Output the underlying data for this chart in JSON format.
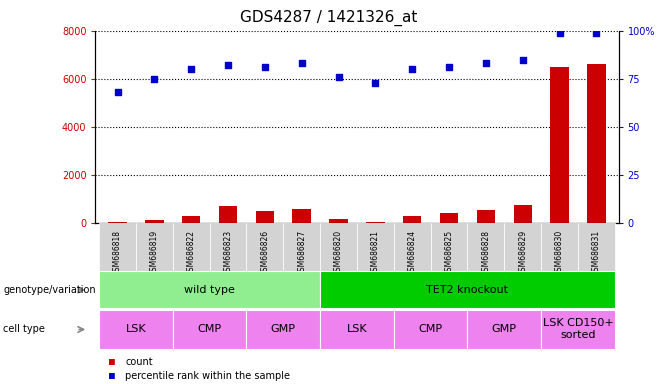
{
  "title": "GDS4287 / 1421326_at",
  "samples": [
    "GSM686818",
    "GSM686819",
    "GSM686822",
    "GSM686823",
    "GSM686826",
    "GSM686827",
    "GSM686820",
    "GSM686821",
    "GSM686824",
    "GSM686825",
    "GSM686828",
    "GSM686829",
    "GSM686830",
    "GSM686831"
  ],
  "counts": [
    50,
    130,
    280,
    700,
    480,
    560,
    150,
    30,
    300,
    420,
    550,
    750,
    6500,
    6600
  ],
  "percentile": [
    68,
    75,
    80,
    82,
    81,
    83,
    76,
    73,
    80,
    81,
    83,
    85,
    99,
    99
  ],
  "bar_color": "#cc0000",
  "dot_color": "#0000cc",
  "ylim_left": [
    0,
    8000
  ],
  "ylim_right": [
    0,
    100
  ],
  "yticks_left": [
    0,
    2000,
    4000,
    6000,
    8000
  ],
  "yticks_right": [
    0,
    25,
    50,
    75,
    100
  ],
  "yticklabels_right": [
    "0",
    "25",
    "50",
    "75",
    "100%"
  ],
  "genotype_groups": [
    {
      "label": "wild type",
      "start": 0,
      "end": 6,
      "color": "#90ee90"
    },
    {
      "label": "TET2 knockout",
      "start": 6,
      "end": 14,
      "color": "#00cc00"
    }
  ],
  "cell_type_groups": [
    {
      "label": "LSK",
      "start": 0,
      "end": 2,
      "color": "#ee82ee"
    },
    {
      "label": "CMP",
      "start": 2,
      "end": 4,
      "color": "#ee82ee"
    },
    {
      "label": "GMP",
      "start": 4,
      "end": 6,
      "color": "#ee82ee"
    },
    {
      "label": "LSK",
      "start": 6,
      "end": 8,
      "color": "#ee82ee"
    },
    {
      "label": "CMP",
      "start": 8,
      "end": 10,
      "color": "#ee82ee"
    },
    {
      "label": "GMP",
      "start": 10,
      "end": 12,
      "color": "#ee82ee"
    },
    {
      "label": "LSK CD150+\nsorted",
      "start": 12,
      "end": 14,
      "color": "#ee82ee"
    }
  ],
  "background_color": "#ffffff",
  "dotted_grid_color": "#000000",
  "tick_label_color_left": "#cc0000",
  "tick_label_color_right": "#0000cc",
  "title_fontsize": 11,
  "axis_fontsize": 7,
  "bar_width": 0.5,
  "left_label_color": "#888888",
  "genotype_label_fontsize": 8,
  "cell_label_fontsize": 8
}
